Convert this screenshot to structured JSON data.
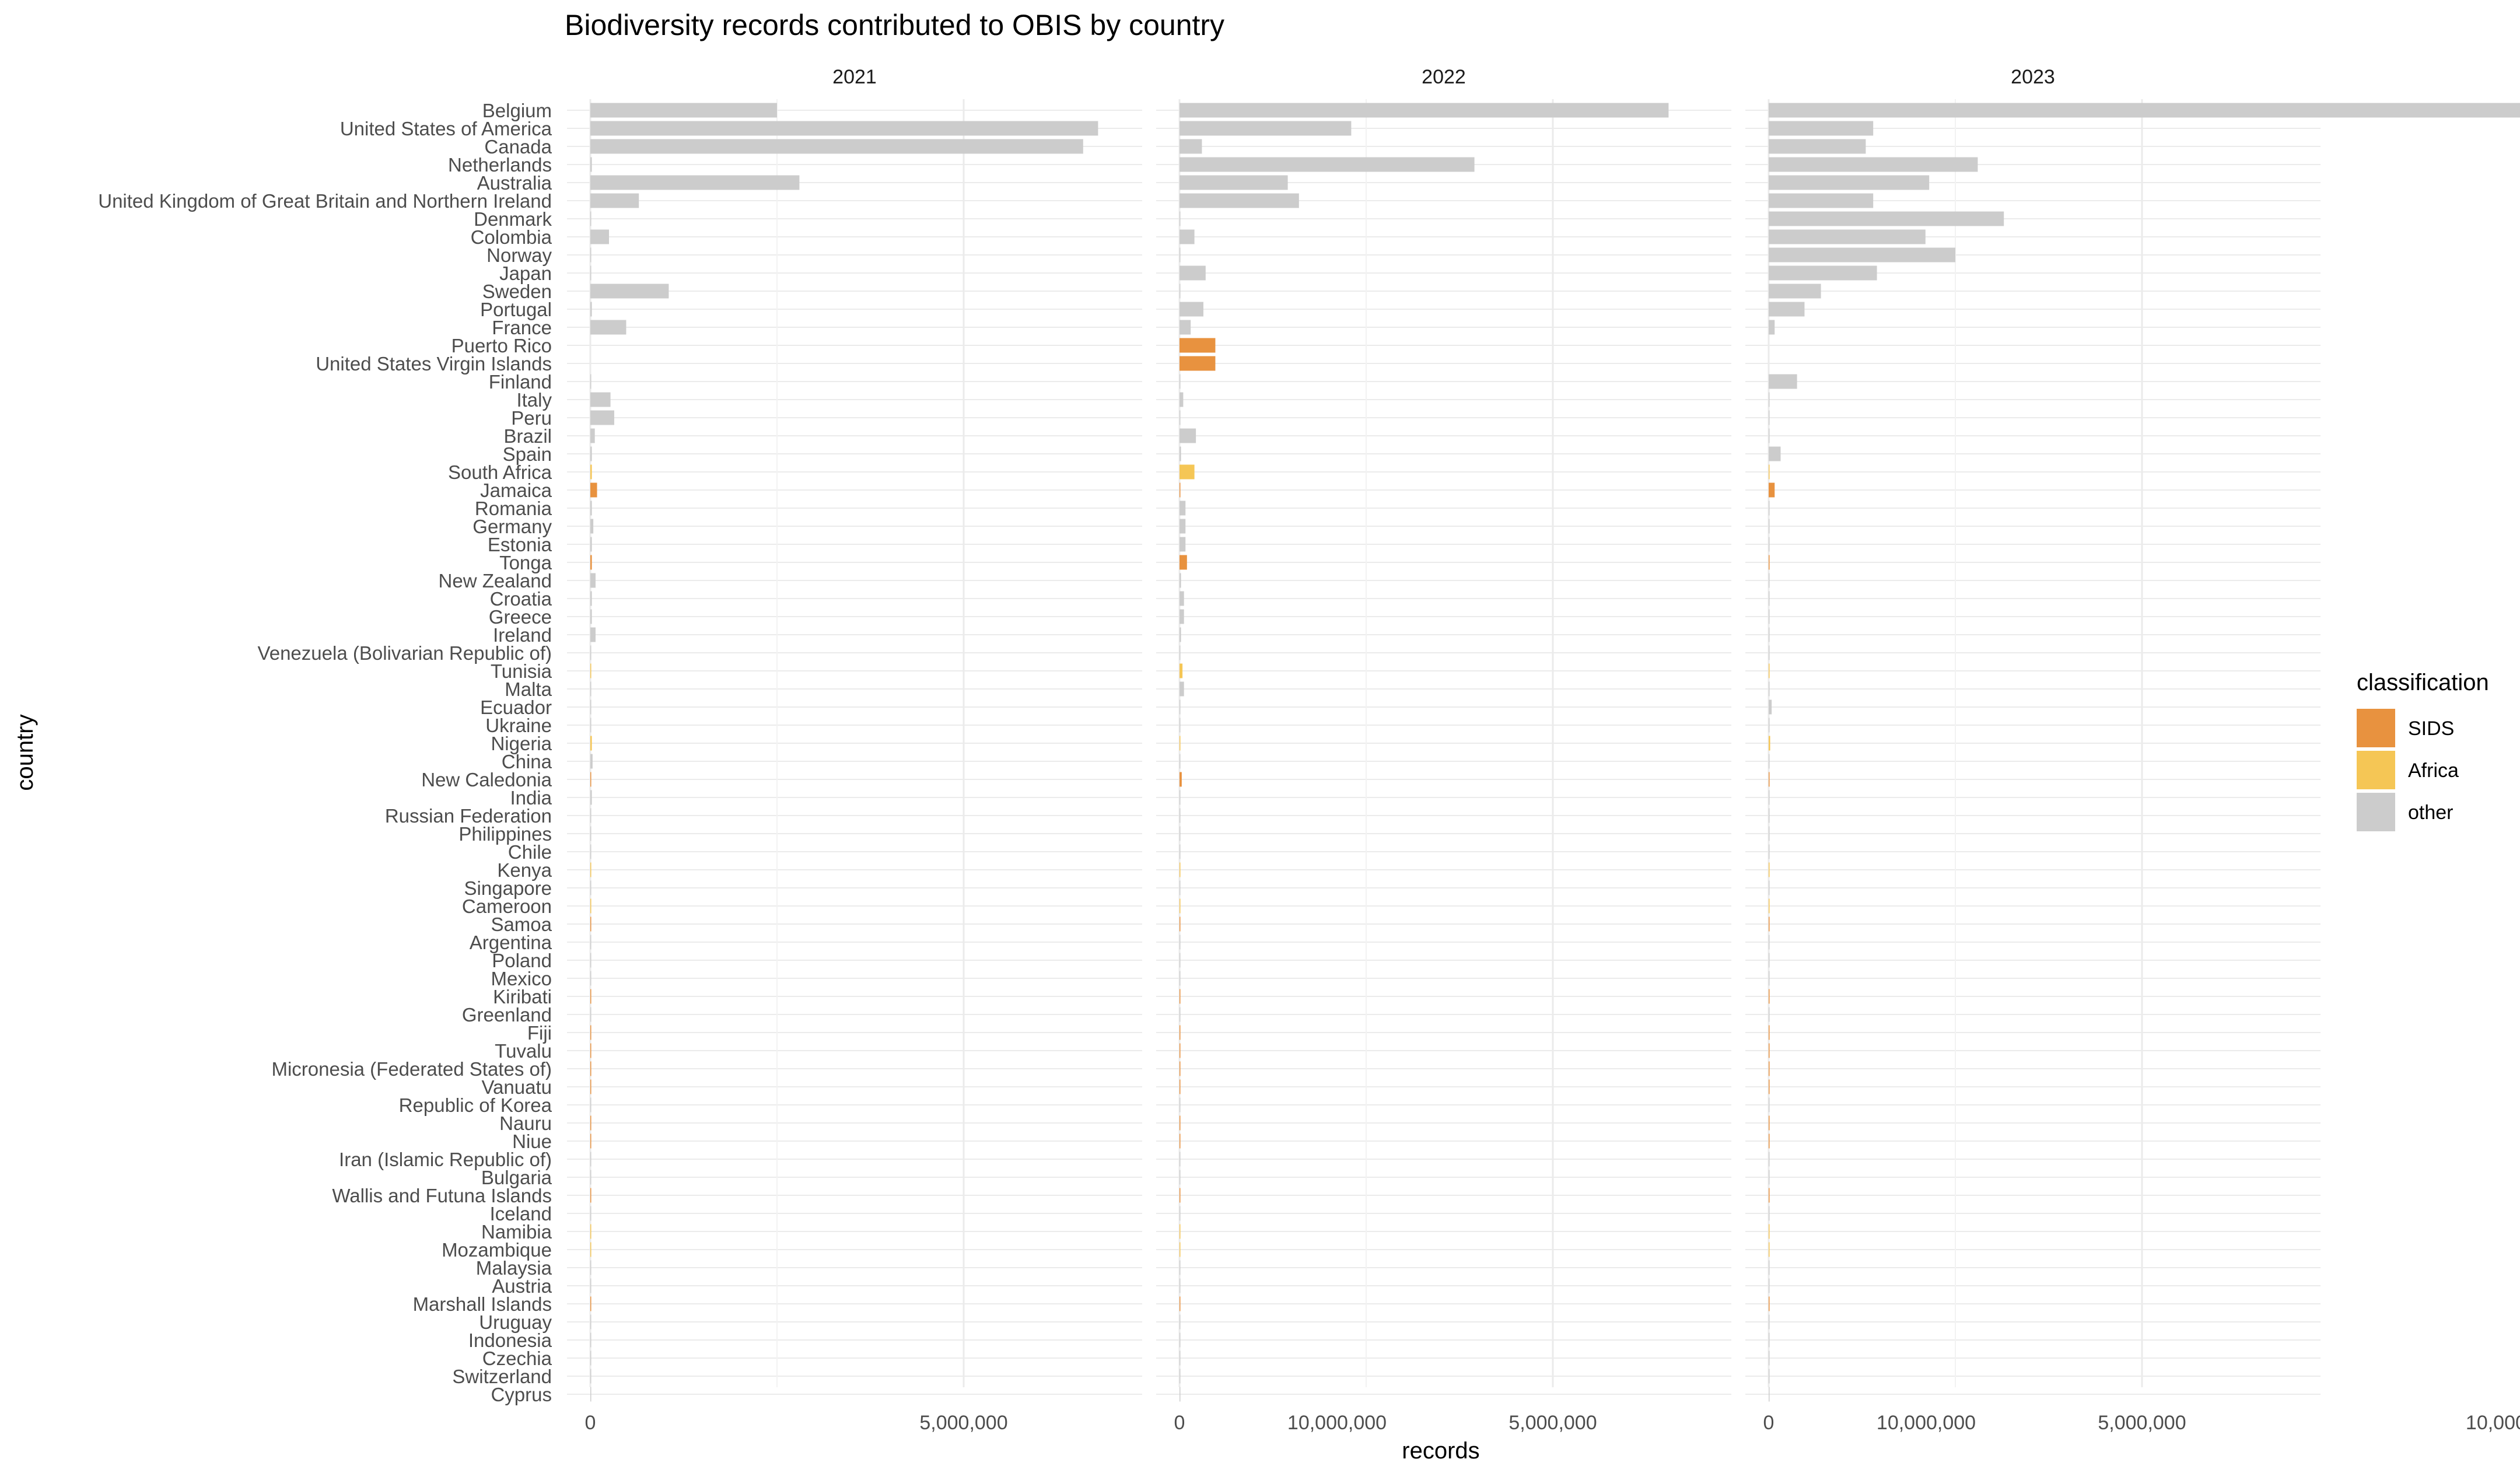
{
  "chart_data": {
    "type": "bar",
    "orientation": "horizontal",
    "title": "Biodiversity records contributed to OBIS by country",
    "xlabel": "records",
    "ylabel": "country",
    "xlim": [
      0,
      14700000
    ],
    "x_ticks": [
      0,
      5000000,
      10000000
    ],
    "x_tick_labels": [
      "0",
      "5,000,000",
      "10,000,000"
    ],
    "grid": true,
    "facets": [
      "2021",
      "2022",
      "2023"
    ],
    "legend": {
      "title": "classification",
      "position": "right",
      "entries": [
        {
          "label": "SIDS",
          "color": "#E8923F"
        },
        {
          "label": "Africa",
          "color": "#F5C655"
        },
        {
          "label": "other",
          "color": "#CCCCCC"
        }
      ]
    },
    "categories": [
      "Belgium",
      "United States of America",
      "Canada",
      "Netherlands",
      "Australia",
      "United Kingdom of Great Britain and Northern Ireland",
      "Denmark",
      "Colombia",
      "Norway",
      "Japan",
      "Sweden",
      "Portugal",
      "France",
      "Puerto Rico",
      "United States Virgin Islands",
      "Finland",
      "Italy",
      "Peru",
      "Brazil",
      "Spain",
      "South Africa",
      "Jamaica",
      "Romania",
      "Germany",
      "Estonia",
      "Tonga",
      "New Zealand",
      "Croatia",
      "Greece",
      "Ireland",
      "Venezuela (Bolivarian Republic of)",
      "Tunisia",
      "Malta",
      "Ecuador",
      "Ukraine",
      "Nigeria",
      "China",
      "New Caledonia",
      "India",
      "Russian Federation",
      "Philippines",
      "Chile",
      "Kenya",
      "Singapore",
      "Cameroon",
      "Samoa",
      "Argentina",
      "Poland",
      "Mexico",
      "Kiribati",
      "Greenland",
      "Fiji",
      "Tuvalu",
      "Micronesia (Federated States of)",
      "Vanuatu",
      "Republic of Korea",
      "Nauru",
      "Niue",
      "Iran (Islamic Republic of)",
      "Bulgaria",
      "Wallis and Futuna Islands",
      "Iceland",
      "Namibia",
      "Mozambique",
      "Malaysia",
      "Austria",
      "Marshall Islands",
      "Uruguay",
      "Indonesia",
      "Czechia",
      "Switzerland",
      "Cyprus"
    ],
    "classification": [
      "other",
      "other",
      "other",
      "other",
      "other",
      "other",
      "other",
      "other",
      "other",
      "other",
      "other",
      "other",
      "other",
      "SIDS",
      "SIDS",
      "other",
      "other",
      "other",
      "other",
      "other",
      "Africa",
      "SIDS",
      "other",
      "other",
      "other",
      "SIDS",
      "other",
      "other",
      "other",
      "other",
      "other",
      "Africa",
      "other",
      "other",
      "other",
      "Africa",
      "other",
      "SIDS",
      "other",
      "other",
      "other",
      "other",
      "Africa",
      "other",
      "Africa",
      "SIDS",
      "other",
      "other",
      "other",
      "SIDS",
      "other",
      "SIDS",
      "SIDS",
      "SIDS",
      "SIDS",
      "other",
      "SIDS",
      "SIDS",
      "other",
      "other",
      "SIDS",
      "other",
      "Africa",
      "Africa",
      "other",
      "other",
      "SIDS",
      "other",
      "other",
      "other",
      "other",
      "other"
    ],
    "series": [
      {
        "facet": "2021",
        "values": [
          2500000,
          6800000,
          6600000,
          20000,
          2800000,
          650000,
          10000,
          250000,
          5000,
          5000,
          1050000,
          20000,
          480000,
          0,
          0,
          10000,
          270000,
          320000,
          60000,
          20000,
          20000,
          90000,
          20000,
          40000,
          20000,
          20000,
          70000,
          20000,
          20000,
          70000,
          10000,
          10000,
          10000,
          10000,
          10000,
          20000,
          30000,
          10000,
          20000,
          10000,
          10000,
          10000,
          10000,
          10000,
          10000,
          10000,
          10000,
          10000,
          10000,
          5000,
          5000,
          5000,
          5000,
          5000,
          5000,
          5000,
          5000,
          5000,
          5000,
          5000,
          5000,
          5000,
          5000,
          5000,
          5000,
          5000,
          5000,
          5000,
          5000,
          5000,
          5000,
          5000
        ]
      },
      {
        "facet": "2022",
        "values": [
          6550000,
          2300000,
          300000,
          3950000,
          1450000,
          1600000,
          10000,
          200000,
          10000,
          350000,
          10000,
          320000,
          150000,
          480000,
          480000,
          10000,
          50000,
          10000,
          220000,
          20000,
          200000,
          10000,
          80000,
          80000,
          80000,
          100000,
          20000,
          60000,
          60000,
          20000,
          10000,
          40000,
          60000,
          10000,
          10000,
          10000,
          10000,
          30000,
          10000,
          10000,
          10000,
          10000,
          10000,
          10000,
          10000,
          10000,
          10000,
          10000,
          10000,
          5000,
          5000,
          5000,
          5000,
          5000,
          5000,
          5000,
          5000,
          5000,
          5000,
          5000,
          5000,
          5000,
          5000,
          5000,
          5000,
          5000,
          5000,
          5000,
          5000,
          5000,
          5000,
          5000
        ]
      },
      {
        "facet": "2023",
        "values": [
          14000000,
          1400000,
          1300000,
          2800000,
          2150000,
          1400000,
          3150000,
          2100000,
          2500000,
          1450000,
          700000,
          480000,
          80000,
          0,
          0,
          380000,
          10000,
          10000,
          10000,
          160000,
          10000,
          80000,
          10000,
          10000,
          10000,
          10000,
          10000,
          10000,
          10000,
          10000,
          10000,
          10000,
          10000,
          40000,
          10000,
          20000,
          10000,
          10000,
          10000,
          10000,
          10000,
          10000,
          10000,
          10000,
          10000,
          10000,
          10000,
          10000,
          10000,
          5000,
          5000,
          5000,
          5000,
          5000,
          5000,
          5000,
          5000,
          5000,
          5000,
          5000,
          5000,
          5000,
          5000,
          5000,
          5000,
          5000,
          5000,
          5000,
          5000,
          5000,
          5000,
          5000
        ]
      }
    ]
  }
}
